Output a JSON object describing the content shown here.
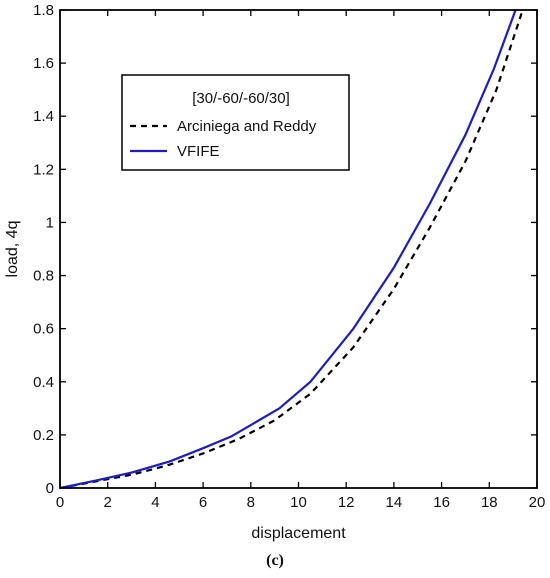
{
  "chart_data": {
    "type": "line",
    "xlabel": "displacement",
    "ylabel": "load, 4q",
    "xlim": [
      0,
      20
    ],
    "ylim": [
      0,
      1.8
    ],
    "x_ticks": [
      "0",
      "2",
      "4",
      "6",
      "8",
      "10",
      "12",
      "14",
      "16",
      "18",
      "20"
    ],
    "y_ticks": [
      "0",
      "0.2",
      "0.4",
      "0.6",
      "0.8",
      "1",
      "1.2",
      "1.4",
      "1.6",
      "1.8"
    ],
    "grid": false,
    "legend": {
      "title": "[30/-60/-60/30]",
      "placement": "top-left"
    },
    "series": [
      {
        "name": "Arciniega and Reddy",
        "color": "#000000",
        "style": "dashed",
        "points": [
          [
            0,
            0
          ],
          [
            1.5,
            0.025
          ],
          [
            3,
            0.05
          ],
          [
            4.5,
            0.085
          ],
          [
            6,
            0.13
          ],
          [
            7.5,
            0.185
          ],
          [
            9,
            0.255
          ],
          [
            10.5,
            0.355
          ],
          [
            12.3,
            0.53
          ],
          [
            14,
            0.75
          ],
          [
            15.5,
            0.98
          ],
          [
            17,
            1.23
          ],
          [
            18.3,
            1.5
          ],
          [
            19.4,
            1.8
          ]
        ]
      },
      {
        "name": "VFIFE",
        "color": "#1c1cc8",
        "style": "solid",
        "points": [
          [
            0,
            0
          ],
          [
            1.5,
            0.028
          ],
          [
            3,
            0.058
          ],
          [
            4.6,
            0.1
          ],
          [
            6,
            0.15
          ],
          [
            7.2,
            0.195
          ],
          [
            9.2,
            0.3
          ],
          [
            10.5,
            0.4
          ],
          [
            12.3,
            0.6
          ],
          [
            14,
            0.83
          ],
          [
            15.5,
            1.07
          ],
          [
            17,
            1.33
          ],
          [
            18.2,
            1.58
          ],
          [
            19.1,
            1.8
          ]
        ]
      }
    ]
  },
  "caption": "(c)"
}
